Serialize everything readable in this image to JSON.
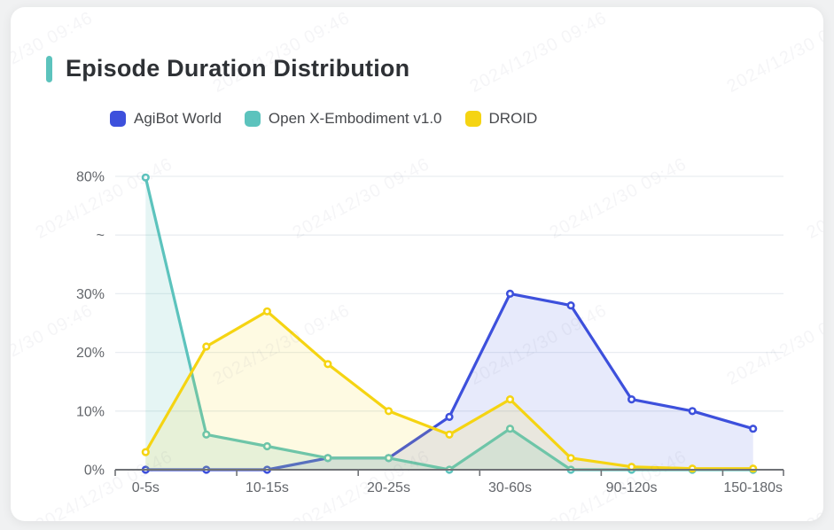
{
  "page": {
    "background": "#f0f1f2",
    "card_background": "#ffffff"
  },
  "header": {
    "title": "Episode Duration Distribution",
    "accent_color": "#5cc3bd"
  },
  "legend": {
    "items": [
      {
        "label": "AgiBot World",
        "color": "#3d50dc"
      },
      {
        "label": "Open X-Embodiment v1.0",
        "color": "#5cc3bd"
      },
      {
        "label": "DROID",
        "color": "#f5d412"
      }
    ]
  },
  "watermark": {
    "text": "2024/12/30 09:46"
  },
  "chart_data": {
    "type": "line",
    "title": "Episode Duration Distribution",
    "x_labels": [
      "0-5s",
      "",
      "10-15s",
      "",
      "20-25s",
      "",
      "30-60s",
      "",
      "90-120s",
      "",
      "150-180s"
    ],
    "x_labels_shown": [
      "0-5s",
      "10-15s",
      "20-25s",
      "30-60s",
      "90-120s",
      "150-180s"
    ],
    "y_ticks": [
      "0%",
      "10%",
      "20%",
      "30%",
      "~",
      "80%"
    ],
    "y_axis": {
      "unit": "%",
      "linear_max": 30,
      "break_after": 30,
      "break_top_value": 80,
      "break_symbol": "~"
    },
    "grid": true,
    "legend_position": "top",
    "series": [
      {
        "name": "AgiBot World",
        "color": "#3d50dc",
        "fill": "rgba(61,80,220,0.12)",
        "values": [
          0,
          0,
          0,
          2,
          2,
          9,
          30,
          28,
          12,
          10,
          7
        ]
      },
      {
        "name": "Open X-Embodiment v1.0",
        "color": "#5cc3bd",
        "fill": "rgba(92,195,189,0.16)",
        "values": [
          79.5,
          6,
          4,
          2,
          2,
          0,
          7,
          0,
          0,
          0,
          0
        ]
      },
      {
        "name": "DROID",
        "color": "#f5d412",
        "fill": "rgba(245,212,18,0.12)",
        "values": [
          3,
          21,
          27,
          18,
          10,
          6,
          12,
          2,
          0.5,
          0.2,
          0.2
        ]
      }
    ],
    "style": {
      "grid_color": "#e9edf1",
      "axis_color": "#6f7276",
      "label_color": "#63666b"
    }
  }
}
